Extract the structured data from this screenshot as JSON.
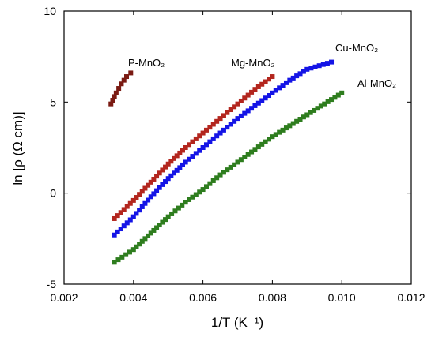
{
  "chart_data": {
    "type": "scatter",
    "xlabel": "1/T (K⁻¹)",
    "ylabel": "ln [ρ (Ω cm)]",
    "xlim": [
      0.002,
      0.012
    ],
    "ylim": [
      -5,
      10
    ],
    "x_ticks": [
      "0.002",
      "0.004",
      "0.006",
      "0.008",
      "0.010",
      "0.012"
    ],
    "y_ticks": [
      "-5",
      "0",
      "5",
      "10"
    ],
    "marker": "square",
    "series": [
      {
        "name": "P-MnO₂",
        "color": "#7a1a12",
        "points": [
          [
            0.00335,
            4.9
          ],
          [
            0.0035,
            5.5
          ],
          [
            0.00365,
            6.0
          ],
          [
            0.0038,
            6.4
          ],
          [
            0.00392,
            6.6
          ]
        ]
      },
      {
        "name": "Mg-MnO₂",
        "color": "#b3261e",
        "points": [
          [
            0.00345,
            -1.4
          ],
          [
            0.004,
            -0.4
          ],
          [
            0.0045,
            0.6
          ],
          [
            0.005,
            1.6
          ],
          [
            0.0055,
            2.5
          ],
          [
            0.006,
            3.3
          ],
          [
            0.0065,
            4.1
          ],
          [
            0.007,
            4.9
          ],
          [
            0.0075,
            5.7
          ],
          [
            0.008,
            6.4
          ]
        ]
      },
      {
        "name": "Cu-MnO₂",
        "color": "#1414e6",
        "points": [
          [
            0.00345,
            -2.3
          ],
          [
            0.004,
            -1.3
          ],
          [
            0.0045,
            -0.2
          ],
          [
            0.005,
            0.8
          ],
          [
            0.0055,
            1.7
          ],
          [
            0.006,
            2.5
          ],
          [
            0.0065,
            3.3
          ],
          [
            0.007,
            4.1
          ],
          [
            0.0075,
            4.8
          ],
          [
            0.008,
            5.5
          ],
          [
            0.0085,
            6.2
          ],
          [
            0.009,
            6.8
          ],
          [
            0.0097,
            7.2
          ]
        ]
      },
      {
        "name": "Al-MnO₂",
        "color": "#2e7d1e",
        "points": [
          [
            0.00345,
            -3.8
          ],
          [
            0.004,
            -3.1
          ],
          [
            0.0045,
            -2.2
          ],
          [
            0.005,
            -1.3
          ],
          [
            0.0055,
            -0.5
          ],
          [
            0.006,
            0.2
          ],
          [
            0.0065,
            1.0
          ],
          [
            0.007,
            1.7
          ],
          [
            0.0075,
            2.4
          ],
          [
            0.008,
            3.1
          ],
          [
            0.0085,
            3.7
          ],
          [
            0.009,
            4.3
          ],
          [
            0.0095,
            4.9
          ],
          [
            0.01,
            5.5
          ]
        ]
      }
    ]
  }
}
